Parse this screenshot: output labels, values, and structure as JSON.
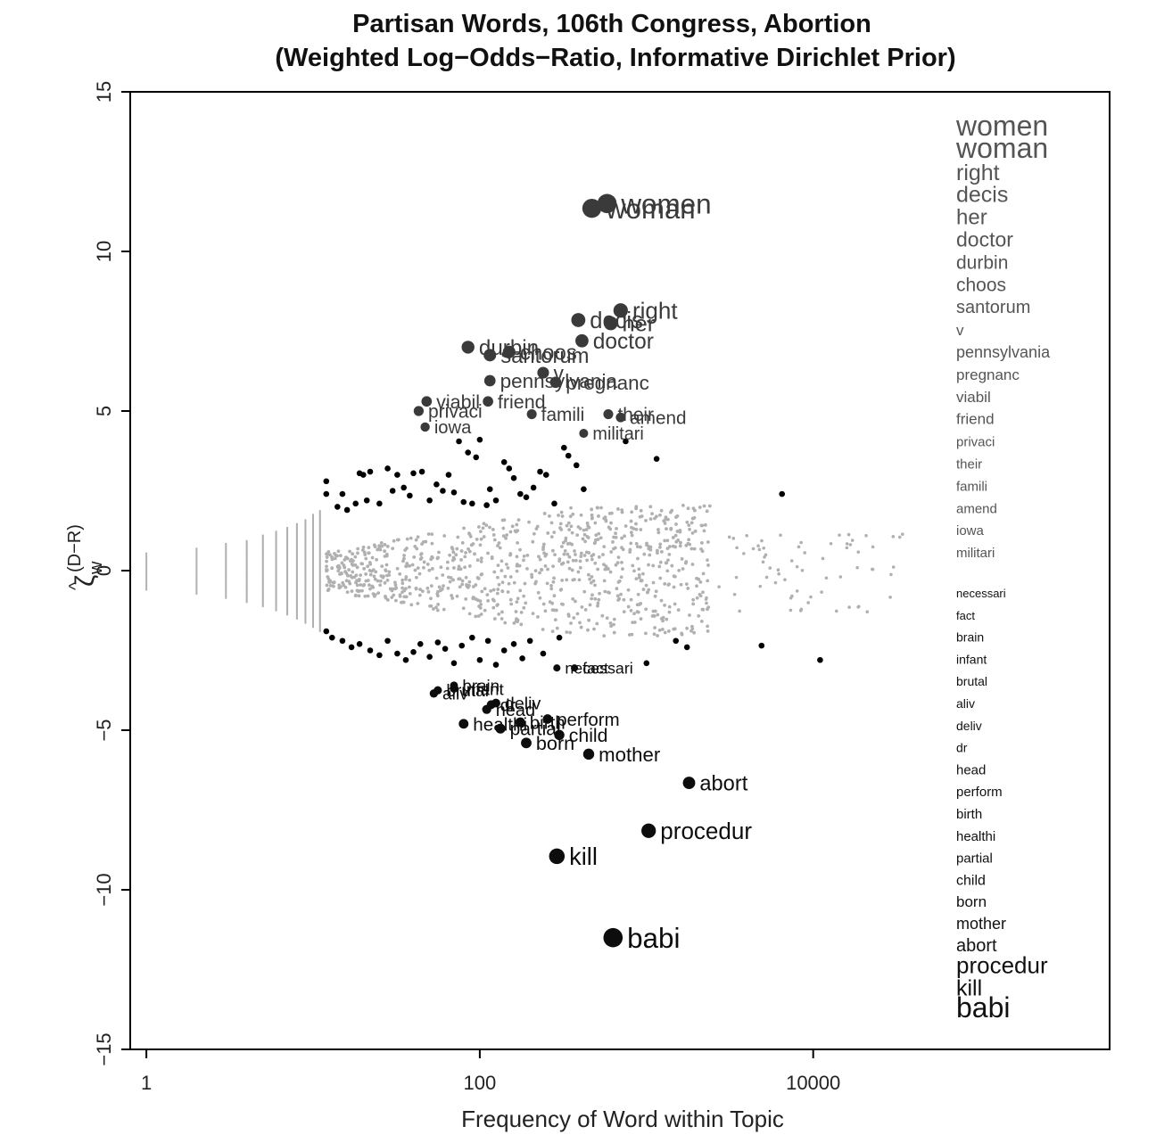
{
  "chart_data": {
    "type": "scatter",
    "title": "Partisan Words, 106th Congress, Abortion",
    "subtitle": "(Weighted Log−Odds−Ratio, Informative Dirichlet Prior)",
    "xlabel": "Frequency of Word within Topic",
    "ylabel_main": "ζ",
    "ylabel_hat": "^",
    "ylabel_sub": "w",
    "ylabel_sup": "(D−R)",
    "x_scale": "log10",
    "xlim": [
      0.8,
      600000
    ],
    "ylim": [
      -15,
      15
    ],
    "x_ticks": [
      {
        "value": 1,
        "label": "1"
      },
      {
        "value": 100,
        "label": "100"
      },
      {
        "value": 10000,
        "label": "10000"
      }
    ],
    "y_ticks": [
      {
        "value": 15,
        "label": "15"
      },
      {
        "value": 10,
        "label": "10"
      },
      {
        "value": 5,
        "label": "5"
      },
      {
        "value": 0,
        "label": "0"
      },
      {
        "value": -5,
        "label": "−5"
      },
      {
        "value": -10,
        "label": "−10"
      },
      {
        "value": -15,
        "label": "−15"
      }
    ],
    "grid": false,
    "colors": {
      "democratic": "#3a3a3a",
      "republican": "#0d0d0d",
      "significant": "#000000",
      "insignificant": "#b0b0b0"
    },
    "labeled_words": [
      {
        "word": "women",
        "freq": 580,
        "zeta": 11.5,
        "party": "D"
      },
      {
        "word": "woman",
        "freq": 470,
        "zeta": 11.35,
        "party": "D"
      },
      {
        "word": "right",
        "freq": 700,
        "zeta": 8.15,
        "party": "D"
      },
      {
        "word": "decis",
        "freq": 390,
        "zeta": 7.85,
        "party": "D"
      },
      {
        "word": "her",
        "freq": 610,
        "zeta": 7.75,
        "party": "D"
      },
      {
        "word": "doctor",
        "freq": 410,
        "zeta": 7.2,
        "party": "D"
      },
      {
        "word": "durbin",
        "freq": 85,
        "zeta": 7.0,
        "party": "D"
      },
      {
        "word": "choos",
        "freq": 150,
        "zeta": 6.85,
        "party": "D"
      },
      {
        "word": "santorum",
        "freq": 115,
        "zeta": 6.75,
        "party": "D"
      },
      {
        "word": "v",
        "freq": 240,
        "zeta": 6.2,
        "party": "D"
      },
      {
        "word": "pennsylvania",
        "freq": 115,
        "zeta": 5.95,
        "party": "D"
      },
      {
        "word": "pregnanc",
        "freq": 285,
        "zeta": 5.9,
        "party": "D"
      },
      {
        "word": "viabil",
        "freq": 48,
        "zeta": 5.3,
        "party": "D"
      },
      {
        "word": "friend",
        "freq": 112,
        "zeta": 5.3,
        "party": "D"
      },
      {
        "word": "privaci",
        "freq": 43,
        "zeta": 5.0,
        "party": "D"
      },
      {
        "word": "their",
        "freq": 590,
        "zeta": 4.9,
        "party": "D"
      },
      {
        "word": "famili",
        "freq": 205,
        "zeta": 4.9,
        "party": "D"
      },
      {
        "word": "amend",
        "freq": 700,
        "zeta": 4.8,
        "party": "D"
      },
      {
        "word": "iowa",
        "freq": 47,
        "zeta": 4.5,
        "party": "D"
      },
      {
        "word": "militari",
        "freq": 420,
        "zeta": 4.3,
        "party": "D"
      },
      {
        "word": "necessari",
        "freq": 290,
        "zeta": -3.05,
        "party": "R"
      },
      {
        "word": "fact",
        "freq": 370,
        "zeta": -3.05,
        "party": "R"
      },
      {
        "word": "brain",
        "freq": 70,
        "zeta": -3.6,
        "party": "R"
      },
      {
        "word": "brutal",
        "freq": 56,
        "zeta": -3.75,
        "party": "R"
      },
      {
        "word": "infant",
        "freq": 70,
        "zeta": -3.7,
        "party": "R"
      },
      {
        "word": "aliv",
        "freq": 53,
        "zeta": -3.85,
        "party": "R"
      },
      {
        "word": "deliv",
        "freq": 125,
        "zeta": -4.15,
        "party": "R"
      },
      {
        "word": "dr",
        "freq": 117,
        "zeta": -4.2,
        "party": "R"
      },
      {
        "word": "head",
        "freq": 110,
        "zeta": -4.35,
        "party": "R"
      },
      {
        "word": "perform",
        "freq": 255,
        "zeta": -4.65,
        "party": "R"
      },
      {
        "word": "birth",
        "freq": 175,
        "zeta": -4.75,
        "party": "R"
      },
      {
        "word": "healthi",
        "freq": 80,
        "zeta": -4.8,
        "party": "R"
      },
      {
        "word": "partial",
        "freq": 133,
        "zeta": -4.95,
        "party": "R"
      },
      {
        "word": "child",
        "freq": 300,
        "zeta": -5.15,
        "party": "R"
      },
      {
        "word": "born",
        "freq": 190,
        "zeta": -5.4,
        "party": "R"
      },
      {
        "word": "mother",
        "freq": 450,
        "zeta": -5.75,
        "party": "R"
      },
      {
        "word": "abort",
        "freq": 1800,
        "zeta": -6.65,
        "party": "R"
      },
      {
        "word": "procedur",
        "freq": 1030,
        "zeta": -8.15,
        "party": "R"
      },
      {
        "word": "kill",
        "freq": 290,
        "zeta": -8.95,
        "party": "R"
      },
      {
        "word": "babi",
        "freq": 630,
        "zeta": -11.5,
        "party": "R"
      }
    ],
    "significant_unlabeled": [
      [
        12,
        2.8
      ],
      [
        12,
        2.4
      ],
      [
        15,
        2.4
      ],
      [
        18,
        2.1
      ],
      [
        16,
        1.9
      ],
      [
        14,
        2.0
      ],
      [
        20,
        3.0
      ],
      [
        22,
        3.1
      ],
      [
        19,
        3.05
      ],
      [
        21,
        2.2
      ],
      [
        25,
        2.1
      ],
      [
        28,
        3.2
      ],
      [
        32,
        3.0
      ],
      [
        35,
        2.6
      ],
      [
        30,
        2.5
      ],
      [
        40,
        3.05
      ],
      [
        45,
        3.1
      ],
      [
        38,
        2.35
      ],
      [
        55,
        2.7
      ],
      [
        50,
        2.2
      ],
      [
        60,
        2.5
      ],
      [
        65,
        3.0
      ],
      [
        70,
        2.45
      ],
      [
        75,
        4.05
      ],
      [
        85,
        3.7
      ],
      [
        95,
        3.55
      ],
      [
        100,
        4.1
      ],
      [
        90,
        2.1
      ],
      [
        80,
        2.15
      ],
      [
        110,
        2.05
      ],
      [
        115,
        2.55
      ],
      [
        125,
        2.2
      ],
      [
        140,
        3.4
      ],
      [
        150,
        3.2
      ],
      [
        160,
        2.9
      ],
      [
        175,
        2.4
      ],
      [
        190,
        2.3
      ],
      [
        210,
        2.6
      ],
      [
        230,
        3.1
      ],
      [
        250,
        3.0
      ],
      [
        280,
        2.1
      ],
      [
        320,
        3.85
      ],
      [
        340,
        3.6
      ],
      [
        380,
        3.3
      ],
      [
        420,
        2.55
      ],
      [
        750,
        4.05
      ],
      [
        1150,
        3.5
      ],
      [
        6500,
        2.4
      ],
      [
        12,
        -1.9
      ],
      [
        13,
        -2.1
      ],
      [
        15,
        -2.2
      ],
      [
        17,
        -2.4
      ],
      [
        19,
        -2.3
      ],
      [
        22,
        -2.5
      ],
      [
        25,
        -2.65
      ],
      [
        28,
        -2.2
      ],
      [
        32,
        -2.6
      ],
      [
        36,
        -2.8
      ],
      [
        40,
        -2.55
      ],
      [
        44,
        -2.3
      ],
      [
        50,
        -2.7
      ],
      [
        56,
        -2.25
      ],
      [
        62,
        -2.45
      ],
      [
        70,
        -2.9
      ],
      [
        78,
        -2.35
      ],
      [
        90,
        -2.1
      ],
      [
        100,
        -2.8
      ],
      [
        112,
        -2.2
      ],
      [
        125,
        -2.95
      ],
      [
        140,
        -2.5
      ],
      [
        160,
        -2.3
      ],
      [
        180,
        -2.75
      ],
      [
        200,
        -2.2
      ],
      [
        240,
        -2.6
      ],
      [
        300,
        -2.1
      ],
      [
        1000,
        -2.9
      ],
      [
        1500,
        -2.2
      ],
      [
        1750,
        -2.4
      ],
      [
        4900,
        -2.35
      ],
      [
        11000,
        -2.8
      ]
    ]
  }
}
